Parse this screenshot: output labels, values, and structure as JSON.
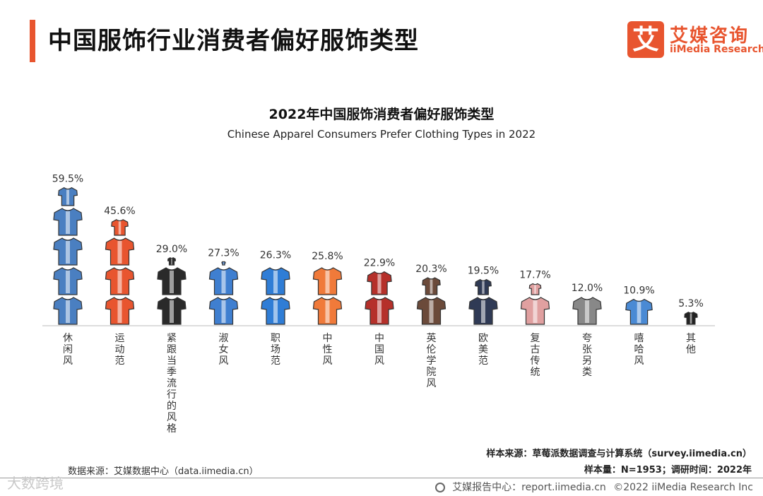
{
  "page_title": "中国服饰行业消费者偏好服饰类型",
  "logo": {
    "mark": "艾",
    "name_cn": "艾媒咨询",
    "name_en": "iiMedia Research"
  },
  "colors": {
    "accent": "#e8552f",
    "axis": "#bbbbbb"
  },
  "chart_data": {
    "type": "bar",
    "title": "2022年中国服饰消费者偏好服饰类型",
    "subtitle": "Chinese Apparel Consumers Prefer Clothing Types in 2022",
    "categories": [
      "休闲风",
      "运动范",
      "紧跟当季流行的风格",
      "淑女风",
      "职场范",
      "中性风",
      "中国风",
      "英伦学院风",
      "欧美范",
      "复古传统",
      "夸张另类",
      "嘻哈风",
      "其他"
    ],
    "values": [
      59.5,
      45.6,
      29.0,
      27.3,
      26.3,
      25.8,
      22.9,
      20.3,
      19.5,
      17.7,
      12.0,
      10.9,
      5.3
    ],
    "value_labels": [
      "59.5%",
      "45.6%",
      "29.0%",
      "27.3%",
      "26.3%",
      "25.8%",
      "22.9%",
      "20.3%",
      "19.5%",
      "17.7%",
      "12.0%",
      "10.9%",
      "5.3%"
    ],
    "icons": [
      "shirt-blue-icon",
      "jersey-orange-icon",
      "suit-black-icon",
      "dress-blue-icon",
      "polo-blue-icon",
      "tshirt-orange-icon",
      "qipao-red-icon",
      "coat-brown-icon",
      "jacket-navy-icon",
      "tangsuit-pink-icon",
      "tshirt-dog-icon",
      "tshirt-stripe-icon",
      "shirt-black-icon"
    ],
    "icon_colors": [
      "#4a7fc1",
      "#e8552f",
      "#2a2a2a",
      "#3f7fd0",
      "#2f7dd6",
      "#f07a3a",
      "#b5302a",
      "#6b4a3a",
      "#2f3a55",
      "#e0a0a0",
      "#888888",
      "#4a8ad4",
      "#222222"
    ],
    "ylim": [
      0,
      60
    ],
    "grid": false
  },
  "footer": {
    "data_source": "数据来源：艾媒数据中心（data.iimedia.cn）",
    "sample_source": "样本来源：草莓派数据调查与计算系统（survey.iimedia.cn）",
    "sample_size": "样本量：N=1953；调研时间：2022年"
  },
  "bottom": {
    "report_center": "艾媒报告中心：report.iimedia.cn",
    "copyright": "©2022  iiMedia Research  Inc",
    "watermark": "大数跨境"
  }
}
